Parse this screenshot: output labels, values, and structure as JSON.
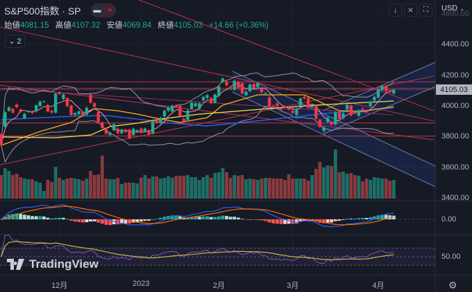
{
  "header": {
    "title": "S&P500指数 · SP",
    "toggle_left": "▬",
    "toggle_right": "≈",
    "legend": {
      "open_label": "始値",
      "open": "4081.15",
      "high_label": "高値",
      "high": "4107.32",
      "low_label": "安値",
      "low": "4069.84",
      "close_label": "終値",
      "close": "4105.03",
      "change": "+14.66 (+0.36%)"
    },
    "collapse_count": "2"
  },
  "toolbar": {
    "currency": "USD",
    "icons": [
      "arrow-down-icon",
      "collapse-icon",
      "fullscreen-icon"
    ]
  },
  "colors": {
    "up": "#22ab94",
    "down": "#f23645",
    "background": "#161a25",
    "macd": "#2962ff",
    "signal": "#ff6d00",
    "rsi": "#7e57c2",
    "rsi_ma": "#c9b940"
  },
  "chart_data": {
    "type": "candlestick",
    "price_axis": {
      "ticks": [
        "4600.00",
        "4400.00",
        "4200.00",
        "4000.00",
        "3800.00",
        "3600.00",
        "3400.00"
      ],
      "tick_values": [
        4600,
        4400,
        4200,
        4000,
        3800,
        3600,
        3400
      ],
      "last_price": "4105.03",
      "last_value": 4105.03
    },
    "time_axis": {
      "labels": [
        "12月",
        "2023",
        "2月",
        "3月",
        "4月"
      ],
      "label_bars": [
        16,
        37,
        57,
        76,
        98
      ]
    },
    "candles": [
      [
        3814,
        3743
      ],
      [
        3865,
        3959
      ],
      [
        3968,
        3991
      ],
      [
        3981,
        3956
      ],
      [
        4009,
        3991
      ],
      [
        3977,
        3961
      ],
      [
        3920,
        3949
      ],
      [
        3961,
        3963
      ],
      [
        3961,
        3953
      ],
      [
        3964,
        4003
      ],
      [
        3999,
        4028
      ],
      [
        4028,
        4029
      ],
      [
        4006,
        3964
      ],
      [
        3968,
        3956
      ],
      [
        3956,
        4081
      ],
      [
        4089,
        4077
      ],
      [
        4044,
        4074
      ],
      [
        4051,
        3999
      ],
      [
        4001,
        3941
      ],
      [
        3941,
        3953
      ],
      [
        3946,
        3964
      ],
      [
        3958,
        3938
      ],
      [
        3943,
        3988
      ],
      [
        4071,
        4021
      ],
      [
        4017,
        3994
      ],
      [
        3961,
        3896
      ],
      [
        3893,
        3856
      ],
      [
        3852,
        3818
      ],
      [
        3810,
        3825
      ],
      [
        3841,
        3881
      ],
      [
        3851,
        3821
      ],
      [
        3821,
        3845
      ],
      [
        3845,
        3830
      ],
      [
        3845,
        3788
      ],
      [
        3810,
        3851
      ],
      [
        3830,
        3841
      ],
      [
        3852,
        3825
      ],
      [
        3833,
        3852
      ],
      [
        3841,
        3814
      ],
      [
        3821,
        3896
      ],
      [
        3916,
        3890
      ],
      [
        3890,
        3923
      ],
      [
        3931,
        3968
      ],
      [
        3968,
        3986
      ],
      [
        3964,
        4001
      ],
      [
        4003,
        3991
      ],
      [
        4001,
        3931
      ],
      [
        3916,
        3901
      ],
      [
        3908,
        3971
      ],
      [
        3981,
        4021
      ],
      [
        3999,
        4017
      ],
      [
        3981,
        4017
      ],
      [
        4036,
        4059
      ],
      [
        4051,
        4071
      ],
      [
        4051,
        4017
      ],
      [
        4021,
        4074
      ],
      [
        4066,
        4126
      ],
      [
        4157,
        4179
      ],
      [
        4157,
        4134
      ],
      [
        4122,
        4111
      ],
      [
        4107,
        4164
      ],
      [
        4157,
        4116
      ],
      [
        4149,
        4081
      ],
      [
        4069,
        4092
      ],
      [
        4096,
        4139
      ],
      [
        4141,
        4116
      ],
      [
        4122,
        4149
      ],
      [
        4114,
        4089
      ],
      [
        4081,
        4083
      ],
      [
        4056,
        3999
      ],
      [
        4001,
        3995
      ],
      [
        4017,
        3999
      ],
      [
        3983,
        3976
      ],
      [
        3994,
        3986
      ],
      [
        3988,
        3976
      ],
      [
        3968,
        3953
      ],
      [
        3941,
        3979
      ],
      [
        3999,
        4048
      ],
      [
        4059,
        4048
      ],
      [
        4051,
        3988
      ],
      [
        3991,
        3999
      ],
      [
        3999,
        3916
      ],
      [
        3911,
        3863
      ],
      [
        3837,
        3860
      ],
      [
        3896,
        3923
      ],
      [
        3893,
        3878
      ],
      [
        3878,
        3958
      ],
      [
        3956,
        3916
      ],
      [
        3920,
        3950
      ],
      [
        3976,
        4006
      ],
      [
        4003,
        3938
      ],
      [
        3961,
        3950
      ],
      [
        3935,
        3971
      ],
      [
        3983,
        3976
      ],
      [
        3968,
        3964
      ],
      [
        3999,
        4028
      ],
      [
        4036,
        4059
      ],
      [
        4054,
        4107
      ],
      [
        4104,
        4130
      ],
      [
        4130,
        4096
      ],
      [
        4101,
        4089
      ],
      [
        4081.15,
        4105.03
      ]
    ],
    "last_high": 4107.32,
    "last_low": 4069.84,
    "volume_relative": [
      34,
      44,
      40,
      34,
      36,
      31,
      29,
      28,
      28,
      25,
      23,
      11,
      27,
      24,
      46,
      30,
      27,
      29,
      30,
      29,
      28,
      26,
      29,
      40,
      34,
      35,
      62,
      29,
      28,
      28,
      30,
      21,
      23,
      23,
      23,
      22,
      30,
      34,
      29,
      32,
      32,
      29,
      30,
      32,
      30,
      33,
      33,
      33,
      34,
      31,
      31,
      27,
      31,
      34,
      30,
      37,
      38,
      44,
      38,
      30,
      34,
      33,
      34,
      28,
      29,
      28,
      27,
      29,
      30,
      30,
      29,
      29,
      29,
      27,
      35,
      29,
      29,
      29,
      29,
      26,
      34,
      43,
      53,
      45,
      48,
      47,
      71,
      38,
      39,
      36,
      37,
      34,
      33,
      25,
      29,
      27,
      31,
      30,
      29,
      29,
      26,
      27
    ],
    "moving_averages": [
      {
        "color": "#2962ff",
        "points": [
          [
            1,
            3910
          ],
          [
            19,
            3932
          ],
          [
            28,
            3937
          ],
          [
            36,
            3914
          ],
          [
            45,
            3887
          ],
          [
            54,
            3869
          ],
          [
            70,
            3910
          ],
          [
            84,
            3950
          ],
          [
            102,
            3986
          ]
        ]
      },
      {
        "color": "#f7a21b",
        "points": [
          [
            1,
            3743
          ],
          [
            11,
            3833
          ],
          [
            19,
            3892
          ],
          [
            25,
            3982
          ],
          [
            31,
            3968
          ],
          [
            36,
            3946
          ],
          [
            42,
            3914
          ],
          [
            47,
            3892
          ],
          [
            54,
            3923
          ],
          [
            58,
            4005
          ],
          [
            67,
            4072
          ],
          [
            79,
            4072
          ],
          [
            84,
            4014
          ],
          [
            88,
            3968
          ],
          [
            94,
            3964
          ],
          [
            102,
            3995
          ]
        ]
      },
      {
        "color": "#e8d44d",
        "points": [
          [
            1,
            3797
          ],
          [
            15,
            3792
          ],
          [
            24,
            3810
          ],
          [
            29,
            3865
          ],
          [
            36,
            3887
          ],
          [
            42,
            3914
          ],
          [
            52,
            3946
          ],
          [
            70,
            3982
          ],
          [
            82,
            4005
          ],
          [
            102,
            4032
          ]
        ]
      }
    ],
    "horizontal_lines": [
      4157,
      4114,
      3888,
      3803
    ],
    "trend_lines": [
      {
        "color": "#c2334a",
        "from": [
          0.7,
          4515
        ],
        "to": [
          112.3,
          3901
        ]
      },
      {
        "color": "#c2334a",
        "from": [
          36.4,
          4691
        ],
        "to": [
          112.3,
          3968
        ]
      },
      {
        "color": "#c2334a",
        "from": [
          0.7,
          4135
        ],
        "to": [
          112.3,
          3779
        ]
      },
      {
        "color": "#9c2a6a",
        "from": [
          0.7,
          4113
        ],
        "to": [
          101.8,
          3941
        ]
      },
      {
        "color": "#c2334a",
        "from": [
          0.7,
          3616
        ],
        "to": [
          112.3,
          4194
        ]
      }
    ],
    "channels": [
      {
        "top": [
          [
            60.5,
            4226
          ],
          [
            112.7,
            3607
          ]
        ],
        "bottom": [
          [
            60.5,
            4090
          ],
          [
            112.7,
            3472
          ]
        ]
      },
      {
        "top": [
          [
            83.7,
            3968
          ],
          [
            112.7,
            4284
          ]
        ],
        "bottom": [
          [
            83.7,
            3815
          ],
          [
            112.7,
            4126
          ]
        ]
      }
    ],
    "macd_axis": {
      "label": "0.00",
      "value": 0
    },
    "rsi_axis": {
      "label": "50.00",
      "value": 50,
      "bands": [
        70,
        30
      ]
    }
  },
  "branding": {
    "logo_text": "TradingView"
  }
}
